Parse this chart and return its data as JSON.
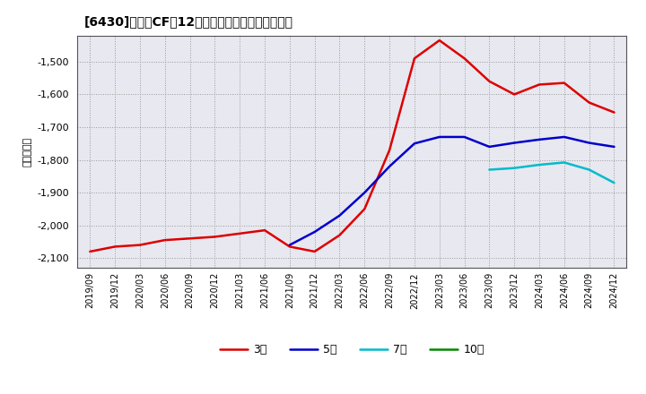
{
  "title": "[6430]　投賄CFの12か月移動合計の平均値の推移",
  "ylabel": "（百万円）",
  "ylim": [
    -2130,
    -1420
  ],
  "yticks": [
    -2100,
    -2000,
    -1900,
    -1800,
    -1700,
    -1600,
    -1500
  ],
  "background_color": "#ffffff",
  "plot_bg_color": "#e8e8f0",
  "grid_color": "#999999",
  "legend_labels": [
    "3年",
    "5年",
    "7年",
    "10年"
  ],
  "line_colors": [
    "#dd0000",
    "#0000cc",
    "#00bbcc",
    "#008800"
  ],
  "x_labels": [
    "2019/09",
    "2019/12",
    "2020/03",
    "2020/06",
    "2020/09",
    "2020/12",
    "2021/03",
    "2021/06",
    "2021/09",
    "2021/12",
    "2022/03",
    "2022/06",
    "2022/09",
    "2022/12",
    "2023/03",
    "2023/06",
    "2023/09",
    "2023/12",
    "2024/03",
    "2024/06",
    "2024/09",
    "2024/12"
  ],
  "series_3y": [
    -2080,
    -2065,
    -2060,
    -2045,
    -2040,
    -2035,
    -2025,
    -2015,
    -2065,
    -2080,
    -2030,
    -1950,
    -1770,
    -1490,
    -1435,
    -1490,
    -1560,
    -1600,
    -1570,
    -1565,
    -1625,
    -1655
  ],
  "series_5y": [
    null,
    null,
    null,
    null,
    null,
    null,
    null,
    null,
    -2060,
    -2020,
    -1970,
    -1900,
    -1820,
    -1750,
    -1730,
    -1730,
    -1760,
    -1748,
    -1738,
    -1730,
    -1748,
    -1760
  ],
  "series_7y": [
    null,
    null,
    null,
    null,
    null,
    null,
    null,
    null,
    null,
    null,
    null,
    null,
    null,
    null,
    null,
    null,
    -1830,
    -1825,
    -1815,
    -1808,
    -1830,
    -1870
  ],
  "series_10y": [
    null,
    null,
    null,
    null,
    null,
    null,
    null,
    null,
    null,
    null,
    null,
    null,
    null,
    null,
    null,
    null,
    null,
    null,
    null,
    null,
    null,
    null
  ]
}
